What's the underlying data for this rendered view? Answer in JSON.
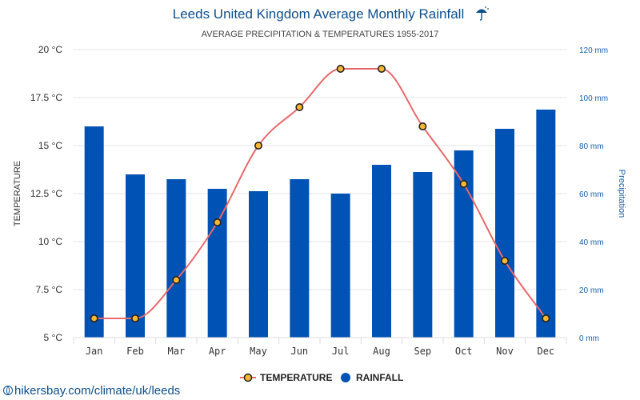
{
  "source_link": "hikersbay.com/climate/uk/leeds",
  "chart_data": {
    "type": "bar+line",
    "title": "Leeds United Kingdom Average Monthly Rainfall",
    "title_icon": "umbrella-rain-icon",
    "subtitle": "AVERAGE PRECIPITATION & TEMPERATURES 1955-2017",
    "categories": [
      "Jan",
      "Feb",
      "Mar",
      "Apr",
      "May",
      "Jun",
      "Jul",
      "Aug",
      "Sep",
      "Oct",
      "Nov",
      "Dec"
    ],
    "series": [
      {
        "name": "RAINFALL",
        "type": "bar",
        "axis": "right",
        "unit": "mm",
        "color": "#0052b4",
        "values": [
          88,
          68,
          66,
          62,
          61,
          66,
          60,
          72,
          69,
          78,
          87,
          95
        ]
      },
      {
        "name": "TEMPERATURE",
        "type": "line",
        "axis": "left",
        "unit": "°C",
        "color": "#e8696b",
        "marker_fill": "#f7b733",
        "values": [
          6,
          6,
          8,
          11,
          15,
          17,
          19,
          19,
          16,
          13,
          9,
          6
        ]
      }
    ],
    "y_left": {
      "label": "TEMPERATURE",
      "ylim": [
        5,
        20
      ],
      "ticks": [
        5,
        7.5,
        10,
        12.5,
        15,
        17.5,
        20
      ],
      "tick_labels": [
        "5 °C",
        "7.5 °C",
        "10 °C",
        "12.5 °C",
        "15 °C",
        "17.5 °C",
        "20 °C"
      ]
    },
    "y_right": {
      "label": "Precipitation",
      "ylim": [
        0,
        120
      ],
      "ticks": [
        0,
        20,
        40,
        60,
        80,
        100,
        120
      ],
      "tick_labels": [
        "0 mm",
        "20 mm",
        "40 mm",
        "60 mm",
        "80 mm",
        "100 mm",
        "120 mm"
      ]
    },
    "grid": true,
    "legend": {
      "position": "bottom",
      "items": [
        "TEMPERATURE",
        "RAINFALL"
      ]
    }
  }
}
